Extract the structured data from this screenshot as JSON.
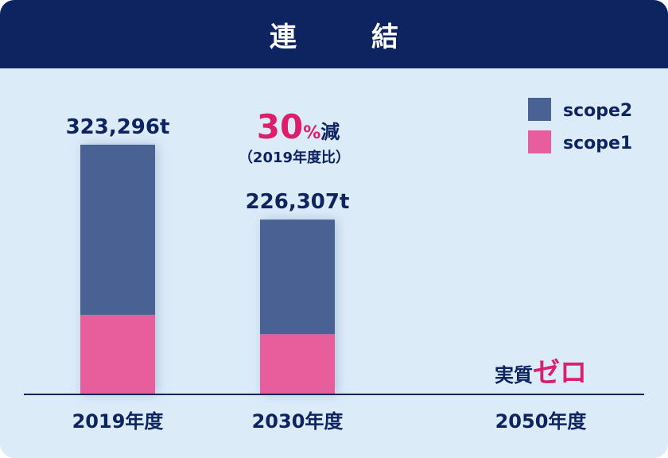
{
  "title": "連　結",
  "colors": {
    "header_bg": "#0d2461",
    "panel_bg": "#dcebf8",
    "scope2": "#4a6293",
    "scope1": "#e85d9b",
    "accent_pink": "#dd1e6d",
    "text_dark": "#0d2461"
  },
  "annotation": {
    "value": "30",
    "unit": "%",
    "suffix": "減",
    "note": "（2019年度比）"
  },
  "zero_label": {
    "prefix": "実質",
    "highlight": "ゼロ"
  },
  "chart_data": {
    "type": "bar",
    "stacked": true,
    "categories": [
      "2019年度",
      "2030年度",
      "2050年度"
    ],
    "series": [
      {
        "name": "scope1",
        "values": [
          103000,
          78000,
          0
        ]
      },
      {
        "name": "scope2",
        "values": [
          220296,
          148307,
          0
        ]
      }
    ],
    "totals": [
      323296,
      226307,
      0
    ],
    "total_labels": [
      "323,296t",
      "226,307t",
      ""
    ],
    "ylim": [
      0,
      350000
    ],
    "legend_position": "top-right",
    "grid": false
  }
}
